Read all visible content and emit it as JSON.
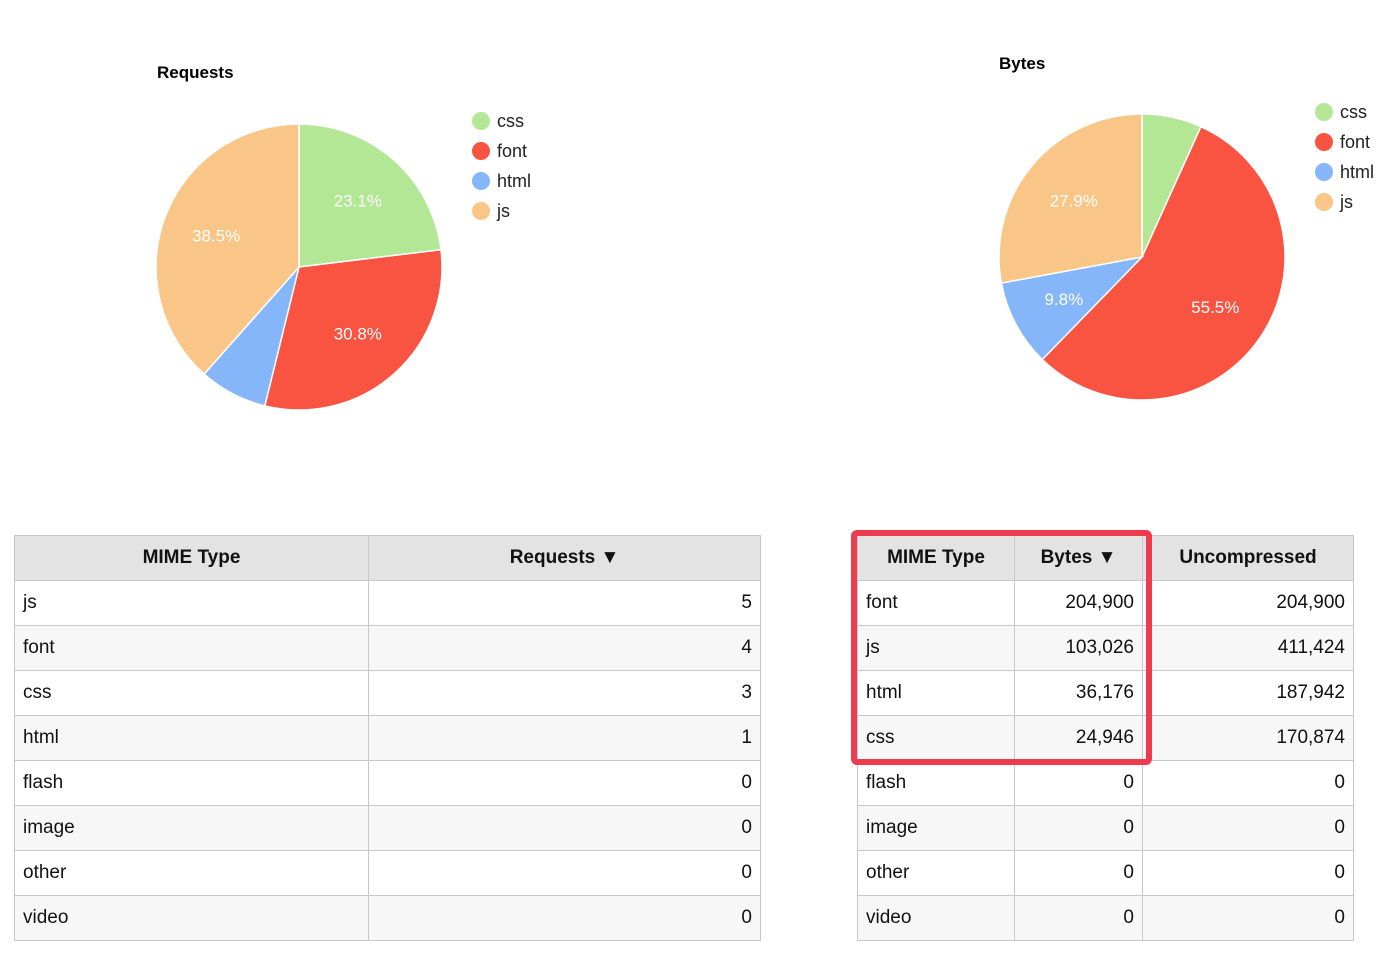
{
  "colors": {
    "css": "#b3e695",
    "font": "#f95441",
    "html": "#84b6f9",
    "js": "#f9c688",
    "highlight": "#ef3b4f"
  },
  "chart_data": [
    {
      "type": "pie",
      "title": "Requests",
      "categories": [
        "css",
        "font",
        "html",
        "js"
      ],
      "values": [
        3,
        4,
        1,
        5
      ],
      "labels": [
        "23.1%",
        "30.8%",
        "",
        "38.5%"
      ],
      "legend": "right"
    },
    {
      "type": "pie",
      "title": "Bytes",
      "categories": [
        "css",
        "font",
        "html",
        "js"
      ],
      "values": [
        24946,
        204900,
        36176,
        103026
      ],
      "labels": [
        "",
        "55.5%",
        "9.8%",
        "27.9%"
      ],
      "legend": "right"
    }
  ],
  "requests_table": {
    "headers": [
      "MIME Type",
      "Requests ▼"
    ],
    "rows": [
      [
        "js",
        "5"
      ],
      [
        "font",
        "4"
      ],
      [
        "css",
        "3"
      ],
      [
        "html",
        "1"
      ],
      [
        "flash",
        "0"
      ],
      [
        "image",
        "0"
      ],
      [
        "other",
        "0"
      ],
      [
        "video",
        "0"
      ]
    ]
  },
  "bytes_table": {
    "headers": [
      "MIME Type",
      "Bytes ▼",
      "Uncompressed"
    ],
    "rows": [
      [
        "font",
        "204,900",
        "204,900"
      ],
      [
        "js",
        "103,026",
        "411,424"
      ],
      [
        "html",
        "36,176",
        "187,942"
      ],
      [
        "css",
        "24,946",
        "170,874"
      ],
      [
        "flash",
        "0",
        "0"
      ],
      [
        "image",
        "0",
        "0"
      ],
      [
        "other",
        "0",
        "0"
      ],
      [
        "video",
        "0",
        "0"
      ]
    ]
  }
}
